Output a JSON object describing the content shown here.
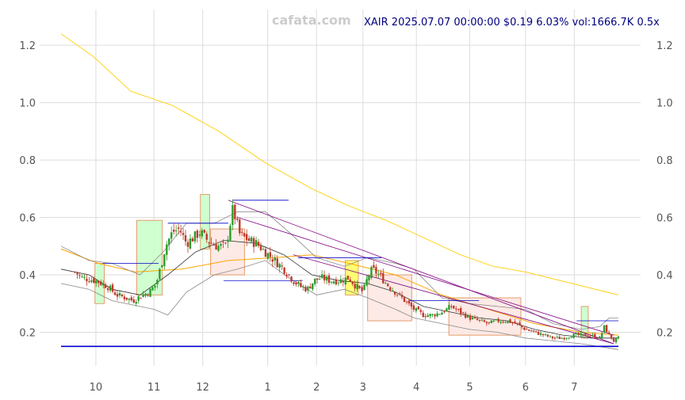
{
  "header": {
    "watermark": "cafata.com",
    "title": "XAIR 2025.07.07 00:00:00 $0.19 6.03% vol:1666.7K 0.5x"
  },
  "colors": {
    "up": "#2a9d2a",
    "down": "#c0392b",
    "ma_slow": "#ffd21a",
    "ma_mid": "#ffa500",
    "ma_fast": "#333333",
    "band": "#888888",
    "trend": "#800080",
    "level": "#0000cc",
    "box_up_fill": "#ccffcc",
    "box_down_fill": "#fde8e4",
    "box_yellow_fill": "#ffff66",
    "box_border": "#e0935a"
  },
  "chart_data": {
    "type": "candlestick",
    "x_ticks": [
      "10",
      "11",
      "12",
      "1",
      "2",
      "3",
      "4",
      "5",
      "6",
      "7"
    ],
    "y_ticks": [
      "0.2",
      "0.4",
      "0.6",
      "0.8",
      "1.0",
      "1.2"
    ],
    "xlim": [
      0,
      12
    ],
    "ylim": [
      0.08,
      1.33
    ],
    "grid": true,
    "close_series": [
      [
        0.3,
        0.41
      ],
      [
        0.45,
        0.39
      ],
      [
        0.75,
        0.38
      ],
      [
        1.0,
        0.36
      ],
      [
        1.2,
        0.33
      ],
      [
        1.4,
        0.32
      ],
      [
        1.55,
        0.31
      ],
      [
        1.75,
        0.33
      ],
      [
        1.9,
        0.34
      ],
      [
        2.05,
        0.37
      ],
      [
        2.15,
        0.43
      ],
      [
        2.25,
        0.5
      ],
      [
        2.4,
        0.55
      ],
      [
        2.55,
        0.56
      ],
      [
        2.7,
        0.51
      ],
      [
        2.85,
        0.53
      ],
      [
        3.0,
        0.55
      ],
      [
        3.15,
        0.52
      ],
      [
        3.35,
        0.5
      ],
      [
        3.55,
        0.5
      ],
      [
        3.7,
        0.63
      ],
      [
        3.85,
        0.54
      ],
      [
        4.05,
        0.52
      ],
      [
        4.2,
        0.51
      ],
      [
        4.4,
        0.48
      ],
      [
        4.6,
        0.45
      ],
      [
        4.8,
        0.42
      ],
      [
        5.0,
        0.38
      ],
      [
        5.15,
        0.36
      ],
      [
        5.3,
        0.35
      ],
      [
        5.45,
        0.38
      ],
      [
        5.6,
        0.39
      ],
      [
        5.8,
        0.38
      ],
      [
        6.0,
        0.38
      ],
      [
        6.2,
        0.39
      ],
      [
        6.35,
        0.36
      ],
      [
        6.5,
        0.34
      ],
      [
        6.6,
        0.39
      ],
      [
        6.7,
        0.42
      ],
      [
        6.85,
        0.4
      ],
      [
        7.0,
        0.37
      ],
      [
        7.2,
        0.34
      ],
      [
        7.4,
        0.31
      ],
      [
        7.6,
        0.28
      ],
      [
        7.8,
        0.26
      ],
      [
        8.0,
        0.26
      ],
      [
        8.2,
        0.27
      ],
      [
        8.4,
        0.29
      ],
      [
        8.6,
        0.27
      ],
      [
        8.8,
        0.25
      ],
      [
        9.0,
        0.24
      ],
      [
        9.2,
        0.23
      ],
      [
        9.4,
        0.24
      ],
      [
        9.6,
        0.24
      ],
      [
        9.8,
        0.23
      ],
      [
        10.0,
        0.21
      ],
      [
        10.2,
        0.2
      ],
      [
        10.4,
        0.19
      ],
      [
        10.6,
        0.18
      ],
      [
        10.8,
        0.18
      ],
      [
        11.0,
        0.19
      ],
      [
        11.2,
        0.19
      ],
      [
        11.4,
        0.19
      ],
      [
        11.6,
        0.18
      ],
      [
        11.7,
        0.22
      ],
      [
        11.8,
        0.19
      ],
      [
        11.9,
        0.17
      ],
      [
        12.0,
        0.18
      ]
    ],
    "ma_slow": [
      [
        0,
        1.24
      ],
      [
        0.7,
        1.16
      ],
      [
        1.5,
        1.04
      ],
      [
        2.4,
        0.99
      ],
      [
        3.4,
        0.9
      ],
      [
        4.4,
        0.79
      ],
      [
        5.4,
        0.7
      ],
      [
        6.2,
        0.64
      ],
      [
        7.0,
        0.59
      ],
      [
        7.8,
        0.53
      ],
      [
        8.6,
        0.47
      ],
      [
        9.3,
        0.43
      ],
      [
        10.0,
        0.41
      ],
      [
        11.0,
        0.37
      ],
      [
        12.0,
        0.33
      ]
    ],
    "ma_mid": [
      [
        0,
        0.49
      ],
      [
        0.8,
        0.44
      ],
      [
        1.6,
        0.41
      ],
      [
        2.6,
        0.42
      ],
      [
        3.6,
        0.45
      ],
      [
        4.6,
        0.46
      ],
      [
        5.4,
        0.47
      ],
      [
        6.2,
        0.44
      ],
      [
        7.2,
        0.4
      ],
      [
        8.2,
        0.33
      ],
      [
        9.2,
        0.28
      ],
      [
        10.2,
        0.23
      ],
      [
        11.2,
        0.2
      ],
      [
        12.0,
        0.19
      ]
    ],
    "ma_fast": [
      [
        0,
        0.42
      ],
      [
        0.6,
        0.4
      ],
      [
        1.1,
        0.35
      ],
      [
        1.7,
        0.33
      ],
      [
        2.3,
        0.4
      ],
      [
        2.9,
        0.48
      ],
      [
        3.5,
        0.52
      ],
      [
        4.2,
        0.51
      ],
      [
        4.8,
        0.47
      ],
      [
        5.4,
        0.4
      ],
      [
        6.0,
        0.38
      ],
      [
        6.6,
        0.37
      ],
      [
        7.2,
        0.34
      ],
      [
        7.8,
        0.29
      ],
      [
        8.4,
        0.27
      ],
      [
        9.0,
        0.25
      ],
      [
        9.6,
        0.24
      ],
      [
        10.2,
        0.21
      ],
      [
        10.8,
        0.19
      ],
      [
        11.4,
        0.18
      ],
      [
        12.0,
        0.18
      ]
    ],
    "band_upper": [
      [
        0,
        0.5
      ],
      [
        0.6,
        0.45
      ],
      [
        1.1,
        0.44
      ],
      [
        1.7,
        0.4
      ],
      [
        2.2,
        0.48
      ],
      [
        2.7,
        0.58
      ],
      [
        3.3,
        0.58
      ],
      [
        3.8,
        0.62
      ],
      [
        4.4,
        0.62
      ],
      [
        4.9,
        0.55
      ],
      [
        5.5,
        0.46
      ],
      [
        6.1,
        0.43
      ],
      [
        6.6,
        0.46
      ],
      [
        7.2,
        0.44
      ],
      [
        7.6,
        0.42
      ],
      [
        8.2,
        0.32
      ],
      [
        8.8,
        0.3
      ],
      [
        9.4,
        0.29
      ],
      [
        10.0,
        0.28
      ],
      [
        10.6,
        0.23
      ],
      [
        11.2,
        0.21
      ],
      [
        11.6,
        0.22
      ],
      [
        11.8,
        0.25
      ],
      [
        12.0,
        0.25
      ]
    ],
    "band_lower": [
      [
        0,
        0.37
      ],
      [
        0.6,
        0.35
      ],
      [
        1.1,
        0.31
      ],
      [
        1.7,
        0.29
      ],
      [
        2.0,
        0.28
      ],
      [
        2.3,
        0.26
      ],
      [
        2.7,
        0.34
      ],
      [
        3.3,
        0.4
      ],
      [
        3.8,
        0.42
      ],
      [
        4.4,
        0.45
      ],
      [
        4.9,
        0.39
      ],
      [
        5.5,
        0.33
      ],
      [
        6.1,
        0.35
      ],
      [
        6.6,
        0.32
      ],
      [
        7.2,
        0.28
      ],
      [
        7.6,
        0.25
      ],
      [
        8.2,
        0.23
      ],
      [
        8.8,
        0.21
      ],
      [
        9.4,
        0.2
      ],
      [
        10.0,
        0.18
      ],
      [
        10.6,
        0.17
      ],
      [
        11.2,
        0.16
      ],
      [
        11.6,
        0.15
      ],
      [
        12.0,
        0.14
      ]
    ],
    "trend_lines": [
      {
        "x1": 3.6,
        "y1": 0.66,
        "x2": 11.9,
        "y2": 0.16
      },
      {
        "x1": 3.8,
        "y1": 0.6,
        "x2": 11.9,
        "y2": 0.19
      },
      {
        "x1": 5.0,
        "y1": 0.47,
        "x2": 11.9,
        "y2": 0.16
      }
    ],
    "levels": [
      {
        "x1": 0,
        "x2": 12,
        "y": 0.151
      },
      {
        "x1": 0.9,
        "x2": 2.1,
        "y": 0.44
      },
      {
        "x1": 2.3,
        "x2": 3.6,
        "y": 0.58
      },
      {
        "x1": 3.7,
        "x2": 4.9,
        "y": 0.66
      },
      {
        "x1": 5.1,
        "x2": 6.9,
        "y": 0.46
      },
      {
        "x1": 3.5,
        "x2": 5.2,
        "y": 0.38
      },
      {
        "x1": 7.5,
        "x2": 9.0,
        "y": 0.31
      },
      {
        "x1": 11.1,
        "x2": 12.0,
        "y": 0.24
      }
    ],
    "boxes": [
      {
        "x1": 0.73,
        "x2": 0.93,
        "y1": 0.3,
        "y2": 0.44,
        "kind": "up"
      },
      {
        "x1": 1.63,
        "x2": 2.18,
        "y1": 0.33,
        "y2": 0.59,
        "kind": "up"
      },
      {
        "x1": 3.0,
        "x2": 3.2,
        "y1": 0.49,
        "y2": 0.68,
        "kind": "up"
      },
      {
        "x1": 3.22,
        "x2": 3.95,
        "y1": 0.4,
        "y2": 0.56,
        "kind": "down"
      },
      {
        "x1": 6.12,
        "x2": 6.4,
        "y1": 0.33,
        "y2": 0.45,
        "kind": "yellow"
      },
      {
        "x1": 6.6,
        "x2": 7.55,
        "y1": 0.24,
        "y2": 0.4,
        "kind": "down"
      },
      {
        "x1": 8.35,
        "x2": 9.9,
        "y1": 0.19,
        "y2": 0.32,
        "kind": "down"
      },
      {
        "x1": 11.2,
        "x2": 11.35,
        "y1": 0.18,
        "y2": 0.29,
        "kind": "up"
      }
    ]
  }
}
